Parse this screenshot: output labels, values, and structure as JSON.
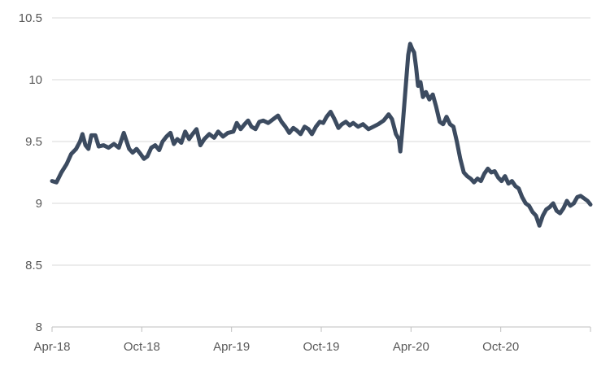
{
  "chart_data": {
    "type": "line",
    "title": "",
    "xlabel": "",
    "ylabel": "",
    "ylim": [
      8,
      10.5
    ],
    "y_ticks": [
      "8",
      "8.5",
      "9",
      "9.5",
      "10",
      "10.5"
    ],
    "x_ticks": [
      "Apr-18",
      "Oct-18",
      "Apr-19",
      "Oct-19",
      "Apr-20",
      "Oct-20"
    ],
    "x_range": [
      "2018-04-01",
      "2021-04-01"
    ],
    "grid": "horizontal",
    "legend": "none",
    "color": "#3c4b60",
    "series": [
      {
        "points": [
          [
            "2018-04-01",
            9.18
          ],
          [
            "2018-04-10",
            9.17
          ],
          [
            "2018-04-20",
            9.25
          ],
          [
            "2018-05-01",
            9.32
          ],
          [
            "2018-05-10",
            9.4
          ],
          [
            "2018-05-20",
            9.44
          ],
          [
            "2018-05-28",
            9.5
          ],
          [
            "2018-06-02",
            9.56
          ],
          [
            "2018-06-08",
            9.47
          ],
          [
            "2018-06-14",
            9.44
          ],
          [
            "2018-06-20",
            9.55
          ],
          [
            "2018-06-28",
            9.55
          ],
          [
            "2018-07-05",
            9.46
          ],
          [
            "2018-07-15",
            9.47
          ],
          [
            "2018-07-25",
            9.45
          ],
          [
            "2018-08-05",
            9.48
          ],
          [
            "2018-08-15",
            9.45
          ],
          [
            "2018-08-25",
            9.57
          ],
          [
            "2018-09-05",
            9.44
          ],
          [
            "2018-09-12",
            9.41
          ],
          [
            "2018-09-20",
            9.44
          ],
          [
            "2018-09-28",
            9.4
          ],
          [
            "2018-10-05",
            9.36
          ],
          [
            "2018-10-12",
            9.38
          ],
          [
            "2018-10-20",
            9.45
          ],
          [
            "2018-10-28",
            9.47
          ],
          [
            "2018-11-05",
            9.43
          ],
          [
            "2018-11-12",
            9.5
          ],
          [
            "2018-11-20",
            9.54
          ],
          [
            "2018-11-28",
            9.57
          ],
          [
            "2018-12-05",
            9.48
          ],
          [
            "2018-12-12",
            9.52
          ],
          [
            "2018-12-20",
            9.49
          ],
          [
            "2018-12-28",
            9.58
          ],
          [
            "2019-01-05",
            9.52
          ],
          [
            "2019-01-12",
            9.56
          ],
          [
            "2019-01-20",
            9.6
          ],
          [
            "2019-01-28",
            9.47
          ],
          [
            "2019-02-05",
            9.52
          ],
          [
            "2019-02-15",
            9.56
          ],
          [
            "2019-02-25",
            9.53
          ],
          [
            "2019-03-05",
            9.58
          ],
          [
            "2019-03-15",
            9.54
          ],
          [
            "2019-03-25",
            9.57
          ],
          [
            "2019-04-05",
            9.58
          ],
          [
            "2019-04-12",
            9.65
          ],
          [
            "2019-04-20",
            9.6
          ],
          [
            "2019-04-28",
            9.64
          ],
          [
            "2019-05-05",
            9.67
          ],
          [
            "2019-05-12",
            9.62
          ],
          [
            "2019-05-20",
            9.6
          ],
          [
            "2019-05-28",
            9.66
          ],
          [
            "2019-06-05",
            9.67
          ],
          [
            "2019-06-15",
            9.65
          ],
          [
            "2019-06-25",
            9.68
          ],
          [
            "2019-07-05",
            9.71
          ],
          [
            "2019-07-12",
            9.66
          ],
          [
            "2019-07-20",
            9.62
          ],
          [
            "2019-07-28",
            9.57
          ],
          [
            "2019-08-05",
            9.61
          ],
          [
            "2019-08-12",
            9.59
          ],
          [
            "2019-08-20",
            9.56
          ],
          [
            "2019-08-28",
            9.62
          ],
          [
            "2019-09-05",
            9.6
          ],
          [
            "2019-09-12",
            9.56
          ],
          [
            "2019-09-20",
            9.62
          ],
          [
            "2019-09-28",
            9.66
          ],
          [
            "2019-10-05",
            9.65
          ],
          [
            "2019-10-12",
            9.7
          ],
          [
            "2019-10-20",
            9.74
          ],
          [
            "2019-10-28",
            9.68
          ],
          [
            "2019-11-05",
            9.61
          ],
          [
            "2019-11-12",
            9.64
          ],
          [
            "2019-11-20",
            9.66
          ],
          [
            "2019-11-28",
            9.63
          ],
          [
            "2019-12-05",
            9.65
          ],
          [
            "2019-12-15",
            9.62
          ],
          [
            "2019-12-25",
            9.64
          ],
          [
            "2020-01-05",
            9.6
          ],
          [
            "2020-01-15",
            9.62
          ],
          [
            "2020-01-25",
            9.64
          ],
          [
            "2020-02-05",
            9.67
          ],
          [
            "2020-02-15",
            9.72
          ],
          [
            "2020-02-22",
            9.68
          ],
          [
            "2020-03-01",
            9.56
          ],
          [
            "2020-03-07",
            9.52
          ],
          [
            "2020-03-10",
            9.42
          ],
          [
            "2020-03-14",
            9.6
          ],
          [
            "2020-03-18",
            9.8
          ],
          [
            "2020-03-22",
            10.0
          ],
          [
            "2020-03-26",
            10.2
          ],
          [
            "2020-03-30",
            10.29
          ],
          [
            "2020-04-03",
            10.25
          ],
          [
            "2020-04-07",
            10.22
          ],
          [
            "2020-04-11",
            10.1
          ],
          [
            "2020-04-15",
            9.95
          ],
          [
            "2020-04-20",
            9.98
          ],
          [
            "2020-04-25",
            9.86
          ],
          [
            "2020-05-01",
            9.9
          ],
          [
            "2020-05-08",
            9.84
          ],
          [
            "2020-05-15",
            9.88
          ],
          [
            "2020-05-22",
            9.78
          ],
          [
            "2020-05-29",
            9.66
          ],
          [
            "2020-06-05",
            9.64
          ],
          [
            "2020-06-12",
            9.7
          ],
          [
            "2020-06-19",
            9.64
          ],
          [
            "2020-06-26",
            9.62
          ],
          [
            "2020-07-03",
            9.5
          ],
          [
            "2020-07-10",
            9.36
          ],
          [
            "2020-07-17",
            9.25
          ],
          [
            "2020-07-24",
            9.22
          ],
          [
            "2020-07-31",
            9.2
          ],
          [
            "2020-08-07",
            9.17
          ],
          [
            "2020-08-14",
            9.2
          ],
          [
            "2020-08-21",
            9.18
          ],
          [
            "2020-08-28",
            9.24
          ],
          [
            "2020-09-04",
            9.28
          ],
          [
            "2020-09-11",
            9.25
          ],
          [
            "2020-09-18",
            9.26
          ],
          [
            "2020-09-25",
            9.21
          ],
          [
            "2020-10-02",
            9.18
          ],
          [
            "2020-10-09",
            9.22
          ],
          [
            "2020-10-16",
            9.16
          ],
          [
            "2020-10-23",
            9.18
          ],
          [
            "2020-10-30",
            9.14
          ],
          [
            "2020-11-06",
            9.12
          ],
          [
            "2020-11-13",
            9.05
          ],
          [
            "2020-11-20",
            9.0
          ],
          [
            "2020-11-27",
            8.98
          ],
          [
            "2020-12-04",
            8.93
          ],
          [
            "2020-12-11",
            8.9
          ],
          [
            "2020-12-18",
            8.82
          ],
          [
            "2020-12-25",
            8.9
          ],
          [
            "2021-01-01",
            8.95
          ],
          [
            "2021-01-08",
            8.97
          ],
          [
            "2021-01-15",
            9.0
          ],
          [
            "2021-01-22",
            8.94
          ],
          [
            "2021-01-29",
            8.92
          ],
          [
            "2021-02-05",
            8.96
          ],
          [
            "2021-02-12",
            9.02
          ],
          [
            "2021-02-19",
            8.98
          ],
          [
            "2021-02-26",
            9.0
          ],
          [
            "2021-03-05",
            9.05
          ],
          [
            "2021-03-12",
            9.06
          ],
          [
            "2021-03-19",
            9.04
          ],
          [
            "2021-03-26",
            9.02
          ],
          [
            "2021-04-01",
            8.99
          ]
        ]
      }
    ]
  }
}
